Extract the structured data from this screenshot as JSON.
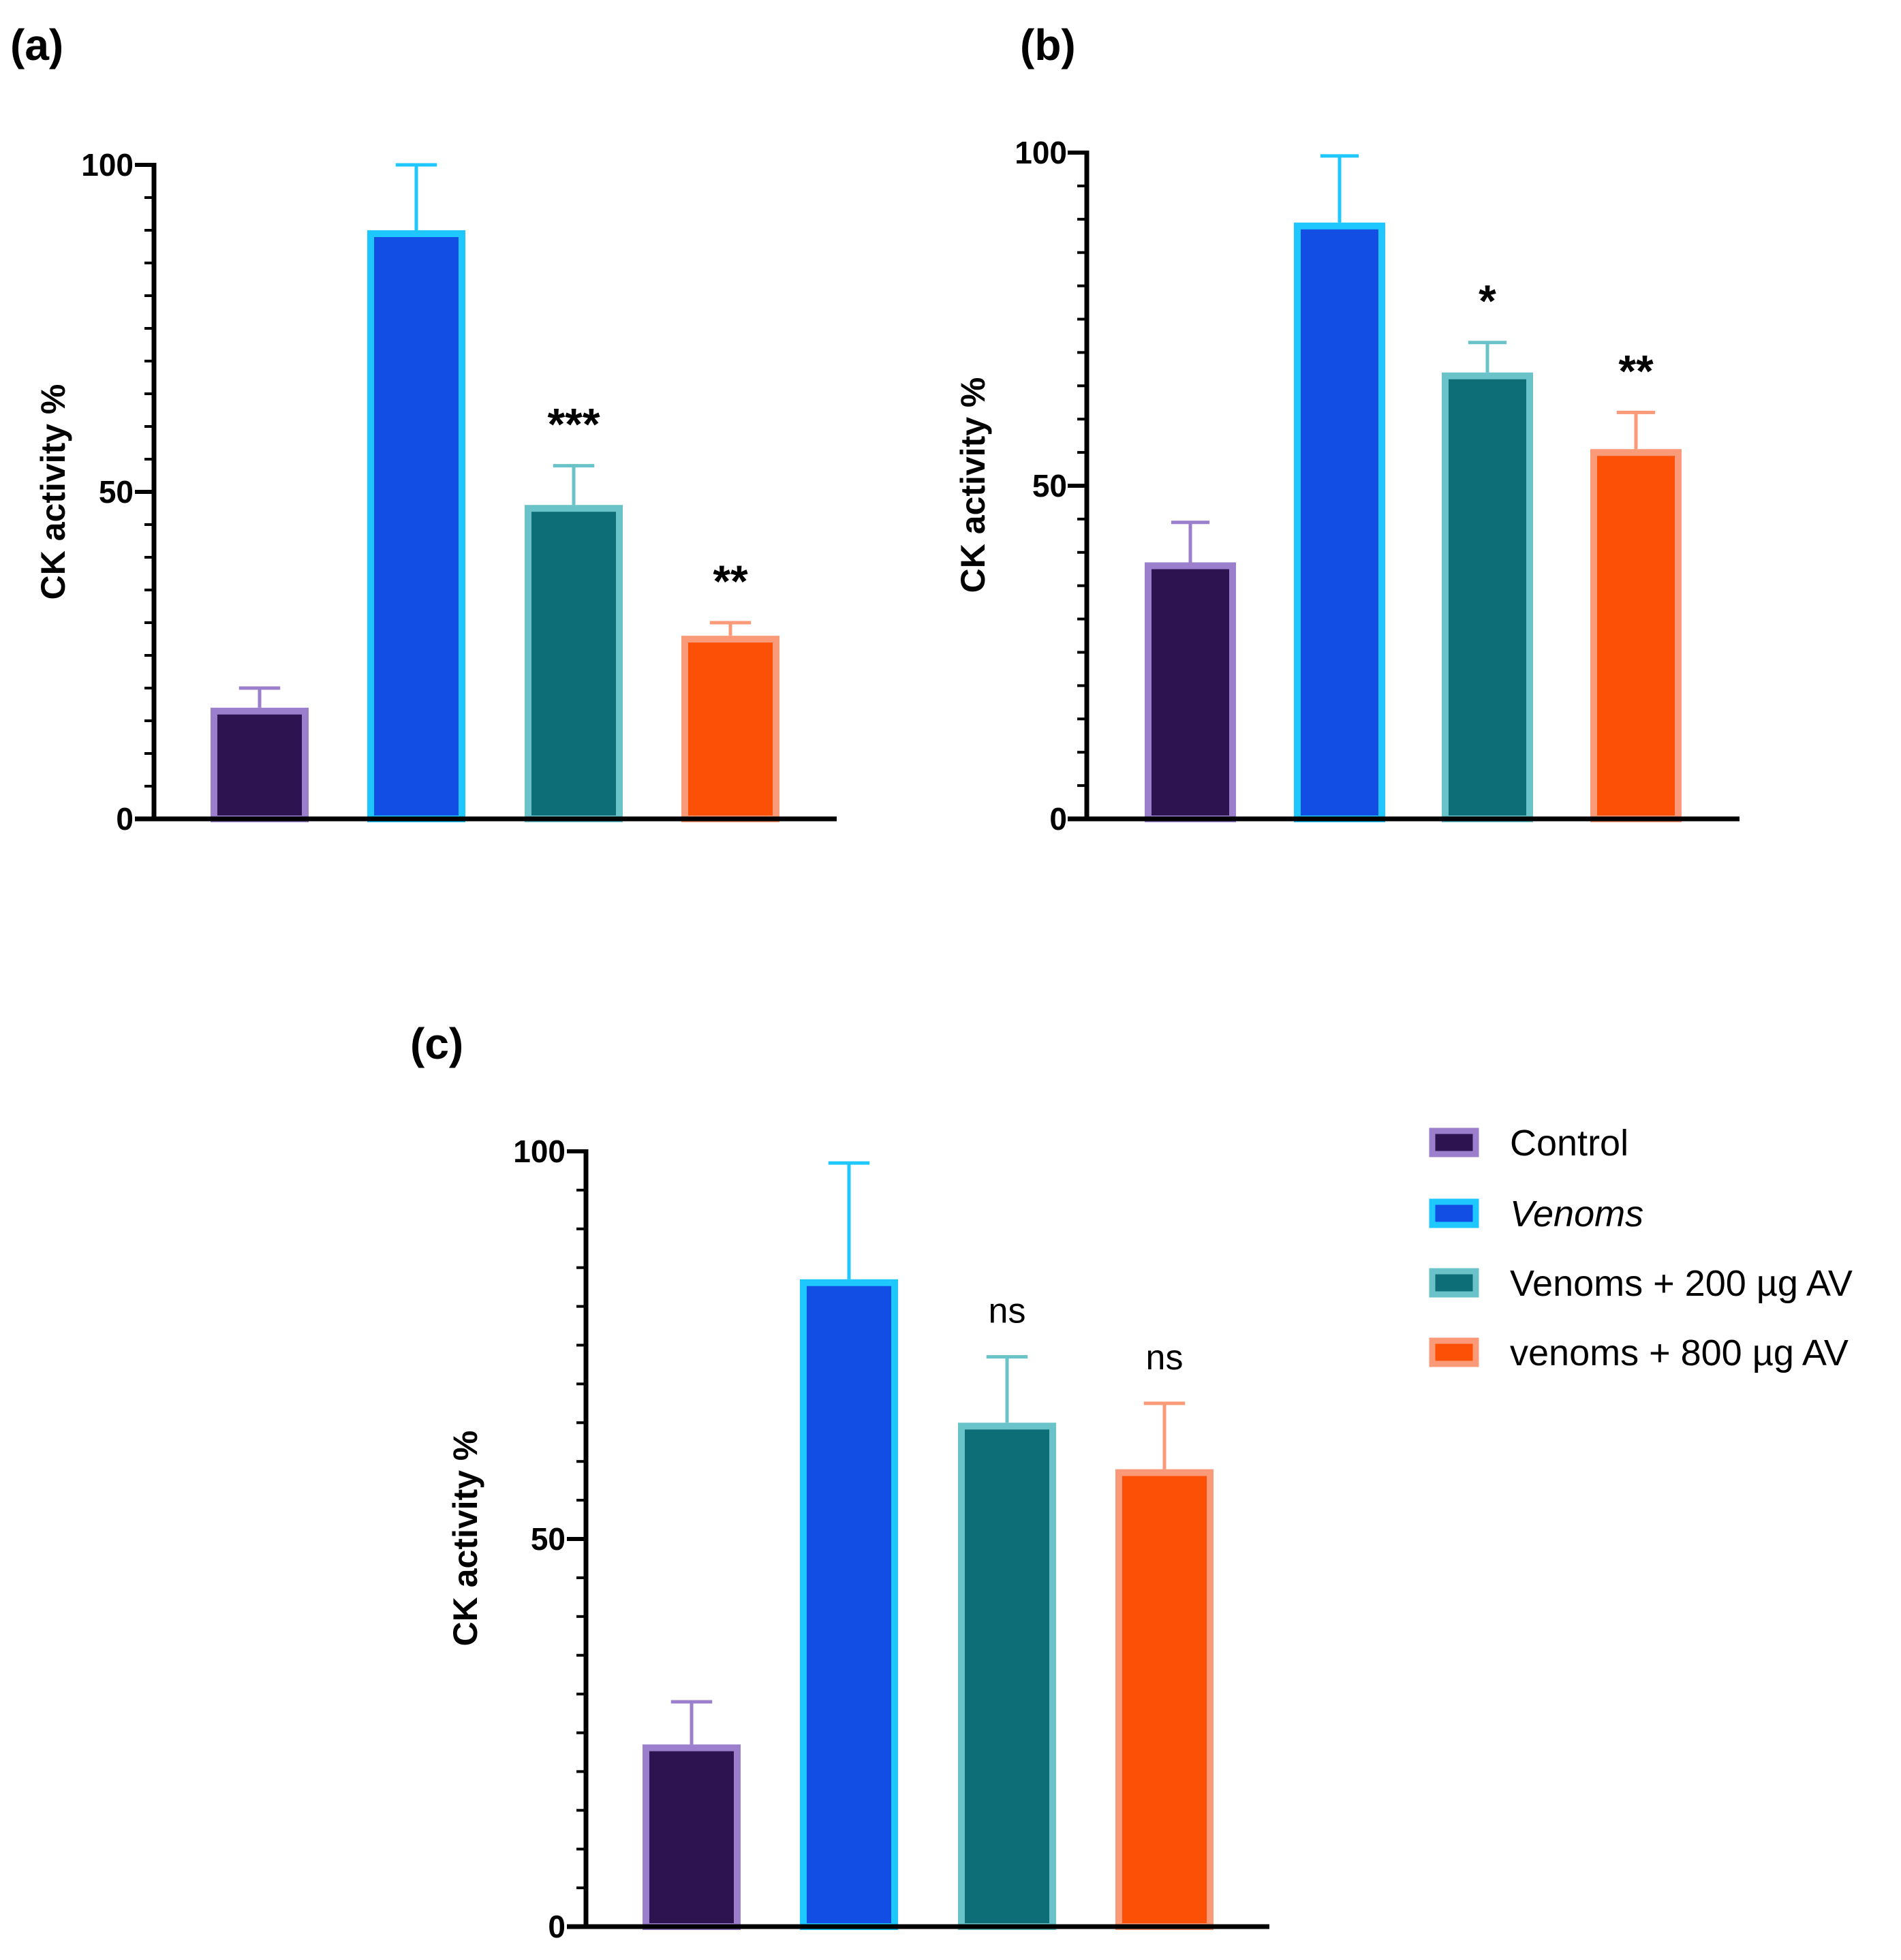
{
  "colors": {
    "control_fill": "#2d1450",
    "control_edge": "#9b7fcc",
    "venoms_fill": "#124ee4",
    "venoms_edge": "#1ec8ff",
    "av200_fill": "#0e6e78",
    "av200_edge": "#6ac3c8",
    "av800_fill": "#fb5006",
    "av800_edge": "#fb9a78",
    "axis": "#000000"
  },
  "legend": {
    "items": [
      {
        "label": "Control",
        "italic": false,
        "fill": "#2d1450",
        "edge": "#9b7fcc"
      },
      {
        "label": "Venoms",
        "italic": true,
        "fill": "#124ee4",
        "edge": "#1ec8ff"
      },
      {
        "label": "Venoms + 200 µg AV",
        "italic": false,
        "fill": "#0e6e78",
        "edge": "#6ac3c8"
      },
      {
        "label": "venoms + 800 µg AV",
        "italic": false,
        "fill": "#fb5006",
        "edge": "#fb9a78"
      }
    ]
  },
  "chart_data": [
    {
      "panel": "(a)",
      "type": "bar",
      "categories": [
        "Control",
        "Venoms",
        "Venoms + 200 µg AV",
        "venoms + 800 µg AV"
      ],
      "values": [
        17,
        90,
        48,
        28
      ],
      "errors": [
        3,
        10,
        6,
        2
      ],
      "significance": [
        "",
        "",
        "***",
        "**"
      ],
      "ylabel": "CK activity %",
      "ylim": [
        0,
        100
      ],
      "yticks": [
        0,
        50,
        100
      ],
      "grid": false
    },
    {
      "panel": "(b)",
      "type": "bar",
      "categories": [
        "Control",
        "Venoms",
        "Venoms + 200 µg AV",
        "venoms + 800 µg AV"
      ],
      "values": [
        38.5,
        89.5,
        67,
        55.5
      ],
      "errors": [
        6,
        10,
        4.5,
        5.5
      ],
      "significance": [
        "",
        "",
        "*",
        "**"
      ],
      "ylabel": "CK activity %",
      "ylim": [
        0,
        100
      ],
      "yticks": [
        0,
        50,
        100
      ],
      "grid": false
    },
    {
      "panel": "(c)",
      "type": "bar",
      "categories": [
        "Control",
        "Venoms",
        "Venoms + 200 µg AV",
        "venoms + 800 µg AV"
      ],
      "values": [
        23.5,
        83.5,
        65,
        59
      ],
      "errors": [
        5.5,
        15,
        8.5,
        8.5
      ],
      "significance": [
        "",
        "",
        "ns",
        "ns"
      ],
      "ylabel": "CK activity %",
      "ylim": [
        0,
        100
      ],
      "yticks": [
        0,
        50,
        100
      ],
      "grid": false
    }
  ]
}
